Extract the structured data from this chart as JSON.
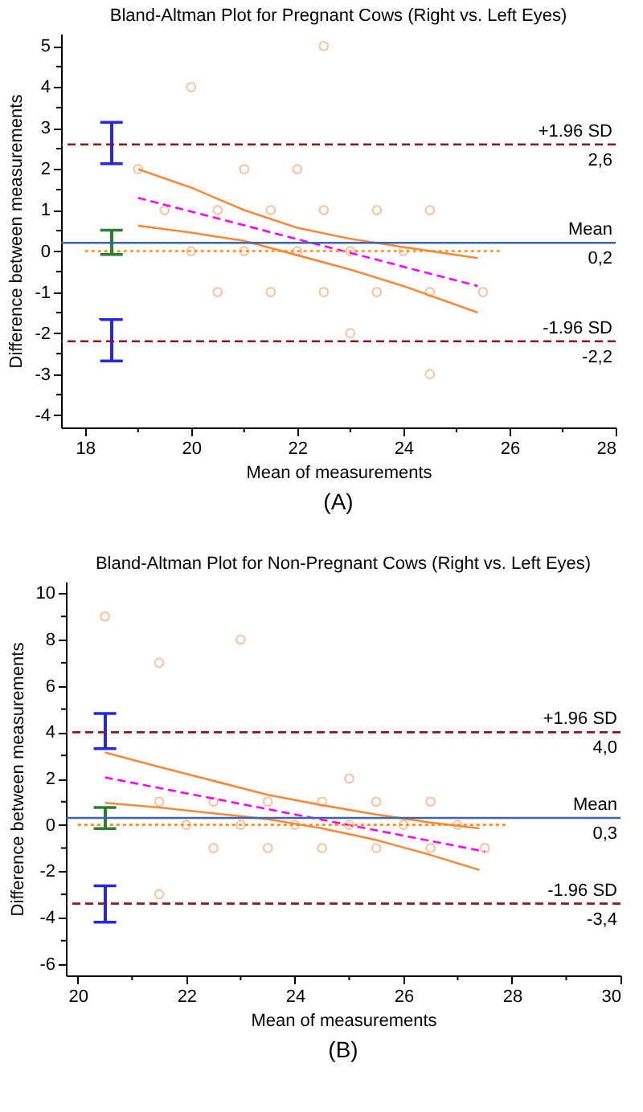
{
  "chart_data": [
    {
      "type": "scatter",
      "title": "Bland-Altman Plot for Pregnant Cows (Right vs. Left Eyes)",
      "xlabel": "Mean of measurements",
      "ylabel": "Difference between measurements",
      "xlim": [
        17.55,
        28
      ],
      "ylim": [
        -4.3,
        5.3
      ],
      "xticks": [
        18,
        {
          "value": 19,
          "label": null
        },
        20,
        {
          "value": 21,
          "label": null
        },
        22,
        {
          "value": 23,
          "label": null
        },
        24,
        {
          "value": 25,
          "label": null
        },
        26,
        {
          "value": 27,
          "label": null
        },
        28
      ],
      "yticks": [
        -4,
        {
          "value": -3.5,
          "label": null
        },
        -3,
        {
          "value": -2.5,
          "label": null
        },
        -2,
        {
          "value": -1.5,
          "label": null
        },
        -1,
        {
          "value": -0.5,
          "label": null
        },
        0,
        {
          "value": 0.5,
          "label": null
        },
        1,
        {
          "value": 1.5,
          "label": null
        },
        2,
        {
          "value": 2.5,
          "label": null
        },
        3,
        {
          "value": 3.5,
          "label": null
        },
        4,
        {
          "value": 4.5,
          "label": null
        },
        5
      ],
      "grid": false,
      "series": [
        {
          "type": "scatter",
          "marker": "circle",
          "color": "#f5a77a",
          "x": [
            19,
            19.5,
            20,
            20,
            20.5,
            20.5,
            21,
            21,
            21.5,
            21.5,
            22,
            22,
            22.5,
            22.5,
            22.5,
            23,
            23,
            23.5,
            23.5,
            24,
            24.5,
            24.5,
            24.5,
            25.5
          ],
          "values": [
            2,
            1,
            4,
            0,
            1,
            -1,
            2,
            0,
            1,
            -1,
            2,
            0,
            5,
            1,
            -1,
            0,
            -2,
            1,
            -1,
            0,
            1,
            -1,
            -3,
            -1
          ]
        },
        {
          "type": "line",
          "line_style": "solid",
          "color": "#f58a3c",
          "x": [
            19,
            20,
            21,
            22,
            23,
            24,
            25.4
          ],
          "values": [
            2.0,
            1.55,
            1.0,
            0.57,
            0.3,
            0.1,
            -0.17
          ]
        },
        {
          "type": "line",
          "line_style": "solid",
          "color": "#f58a3c",
          "x": [
            19,
            20,
            21,
            22,
            23,
            24,
            25.4
          ],
          "values": [
            0.62,
            0.45,
            0.25,
            -0.1,
            -0.45,
            -0.85,
            -1.5
          ]
        },
        {
          "type": "line",
          "line_style": "dashed",
          "color": "#ff00ff",
          "x": [
            19,
            25.4
          ],
          "values": [
            1.3,
            -0.85
          ]
        },
        {
          "type": "line",
          "line_style": "dotted",
          "color": "#ff8c1a",
          "x": [
            18,
            25.85
          ],
          "values": [
            0,
            0
          ]
        },
        {
          "type": "bar",
          "color": "#2626e6",
          "x": [
            18.5,
            18.5
          ],
          "base": [
            2.13,
            -2.68
          ],
          "values": [
            1.01,
            1.01
          ]
        },
        {
          "type": "bar",
          "color": "#2e7d32",
          "x": [
            18.5
          ],
          "base": [
            -0.08
          ],
          "values": [
            0.59
          ]
        }
      ],
      "ref_lines": [
        {
          "axis": "y",
          "value": 2.6,
          "label": "+1.96 SD",
          "color": "#8b1a1a",
          "line_style": "dashed"
        },
        {
          "axis": "y",
          "value": 0.2,
          "label": "Mean",
          "color": "#3b64ad",
          "line_style": "solid"
        },
        {
          "axis": "y",
          "value": -2.2,
          "label": "-1.96 SD",
          "color": "#8b1a1a",
          "line_style": "dashed"
        }
      ],
      "annotations": [
        {
          "text": "2,6",
          "y": 2.6
        },
        {
          "text": "0,2",
          "y": 0.2
        },
        {
          "text": "-2,2",
          "y": -2.2
        },
        "(A)"
      ]
    },
    {
      "type": "scatter",
      "title": "Bland-Altman Plot for Non-Pregnant Cows (Right vs. Left Eyes)",
      "xlabel": "Mean of measurements",
      "ylabel": "Difference between measurements",
      "xlim": [
        19.78,
        30
      ],
      "ylim": [
        -6.5,
        10.5
      ],
      "xticks": [
        20,
        {
          "value": 21,
          "label": null
        },
        22,
        {
          "value": 23,
          "label": null
        },
        24,
        {
          "value": 25,
          "label": null
        },
        26,
        {
          "value": 27,
          "label": null
        },
        28,
        {
          "value": 29,
          "label": null
        },
        30
      ],
      "yticks": [
        -6,
        {
          "value": -5,
          "label": null
        },
        -4,
        {
          "value": -3,
          "label": null
        },
        -2,
        {
          "value": -1,
          "label": null
        },
        0,
        {
          "value": 1,
          "label": null
        },
        2,
        {
          "value": 3,
          "label": null
        },
        4,
        {
          "value": 5,
          "label": null
        },
        6,
        {
          "value": 7,
          "label": null
        },
        8,
        {
          "value": 9,
          "label": null
        },
        10
      ],
      "grid": false,
      "series": [
        {
          "type": "scatter",
          "marker": "circle",
          "color": "#f5a77a",
          "x": [
            20.5,
            21.5,
            21.5,
            21.5,
            22,
            22.5,
            22.5,
            23,
            23,
            23.5,
            23.5,
            24,
            24.5,
            24.5,
            25,
            25,
            25.5,
            25.5,
            26,
            26.5,
            26.5,
            27,
            27.5
          ],
          "values": [
            9,
            7,
            1,
            -3,
            0,
            1,
            -1,
            8,
            0,
            1,
            -1,
            0,
            1,
            -1,
            2,
            0,
            1,
            -1,
            0,
            1,
            -1,
            0,
            -1
          ]
        },
        {
          "type": "line",
          "line_style": "solid",
          "color": "#f58a3c",
          "x": [
            20.5,
            21.5,
            22.5,
            23.5,
            24.5,
            25.5,
            26.5,
            27.4
          ],
          "values": [
            3.13,
            2.5,
            1.9,
            1.3,
            0.85,
            0.45,
            0.1,
            -0.15
          ]
        },
        {
          "type": "line",
          "line_style": "solid",
          "color": "#f58a3c",
          "x": [
            20.5,
            21.5,
            22.5,
            23.5,
            24.5,
            25.5,
            26.5,
            27.4
          ],
          "values": [
            0.95,
            0.75,
            0.5,
            0.25,
            -0.15,
            -0.65,
            -1.3,
            -1.95
          ]
        },
        {
          "type": "line",
          "line_style": "dashed",
          "color": "#ff00ff",
          "x": [
            20.5,
            27.5
          ],
          "values": [
            2.05,
            -1.15
          ]
        },
        {
          "type": "line",
          "line_style": "dotted",
          "color": "#ff8c1a",
          "x": [
            20,
            27.9
          ],
          "values": [
            0,
            0
          ]
        },
        {
          "type": "bar",
          "color": "#2626e6",
          "x": [
            20.5,
            20.5
          ],
          "base": [
            3.29,
            -4.2
          ],
          "values": [
            1.52,
            1.57
          ]
        },
        {
          "type": "bar",
          "color": "#2e7d32",
          "x": [
            20.5
          ],
          "base": [
            -0.16
          ],
          "values": [
            0.91
          ]
        }
      ],
      "ref_lines": [
        {
          "axis": "y",
          "value": 4.0,
          "label": "+1.96 SD",
          "color": "#8b1a1a",
          "line_style": "dashed"
        },
        {
          "axis": "y",
          "value": 0.3,
          "label": "Mean",
          "color": "#3b64ad",
          "line_style": "solid"
        },
        {
          "axis": "y",
          "value": -3.4,
          "label": "-1.96 SD",
          "color": "#8b1a1a",
          "line_style": "dashed"
        }
      ],
      "annotations": [
        {
          "text": "4,0",
          "y": 4.0
        },
        {
          "text": "0,3",
          "y": 0.3
        },
        {
          "text": "-3,4",
          "y": -3.4
        },
        "(B)"
      ]
    }
  ]
}
